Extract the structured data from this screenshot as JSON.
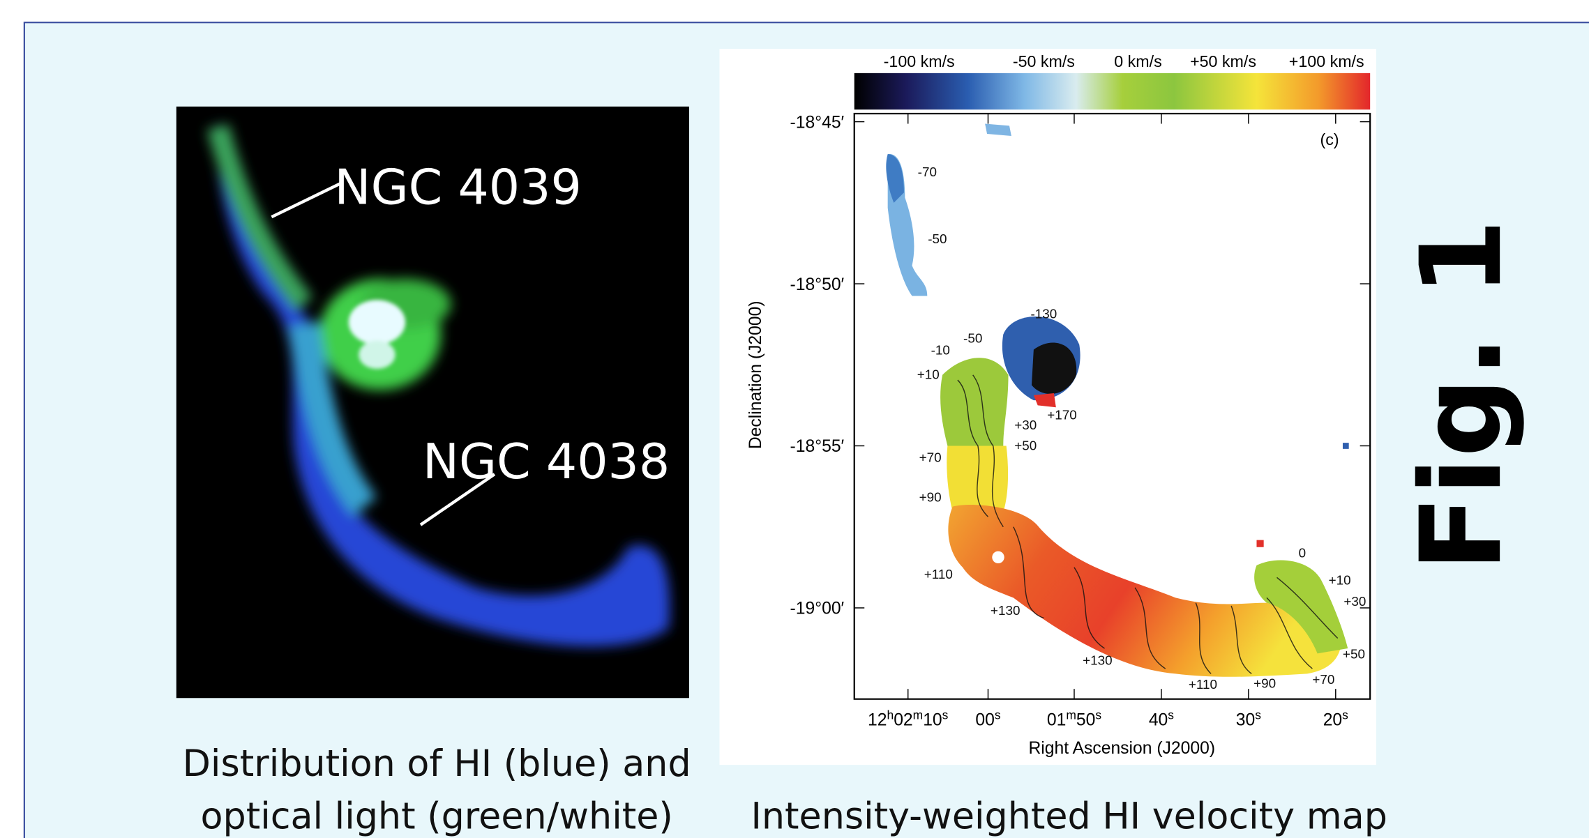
{
  "left_panel": {
    "labels": [
      "NGC 4039",
      "NGC 4038"
    ],
    "caption": [
      "Distribution of HI (blue) and",
      "optical light (green/white)"
    ]
  },
  "right_panel": {
    "colorbar_labels": [
      "-100 km/s",
      "-50 km/s",
      "0 km/s",
      "+50 km/s",
      "+100 km/s"
    ],
    "panel_label": "(c)",
    "y_axis_label": "Declination (J2000)",
    "x_axis_label": "Right Ascension (J2000)",
    "y_tick_labels": [
      "-18°45′",
      "-18°50′",
      "-18°55′",
      "-19°00′"
    ],
    "x_tick_labels": [
      [
        "12",
        "h",
        "02",
        "m",
        "10",
        "s"
      ],
      [
        "00",
        "s"
      ],
      [
        "01",
        "m",
        "50",
        "s"
      ],
      [
        "40",
        "s"
      ],
      [
        "30",
        "s"
      ],
      [
        "20",
        "s"
      ]
    ],
    "contour_labels": [
      "-70",
      "-50",
      "-130",
      "-10",
      "-50",
      "+10",
      "+30",
      "+50",
      "+170",
      "+70",
      "+90",
      "+110",
      "+130",
      "+130",
      "+110",
      "+90",
      "+70",
      "+50",
      "+30",
      "+10",
      "0"
    ],
    "caption": "Intensity-weighted HI velocity map"
  },
  "figure_label": "Fig. 1"
}
